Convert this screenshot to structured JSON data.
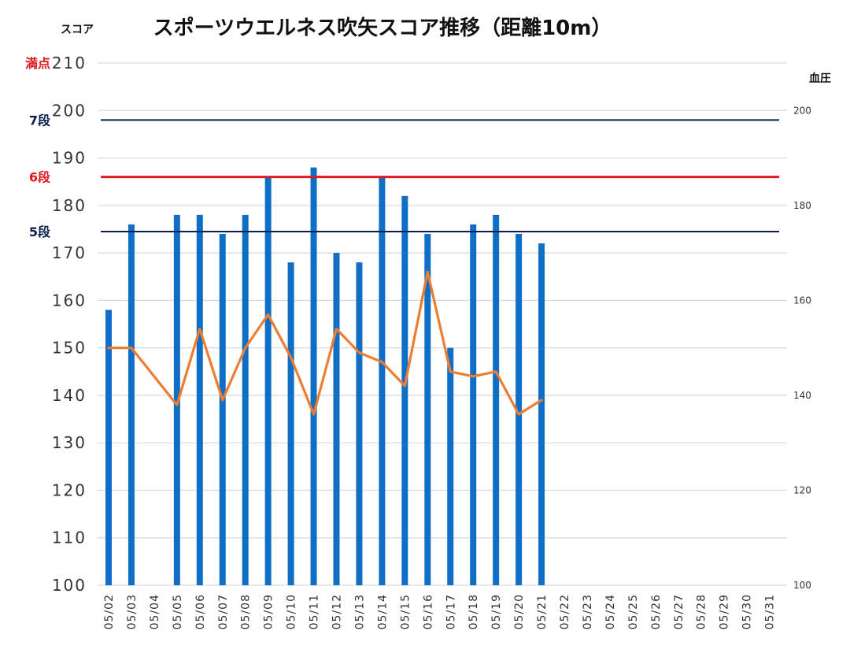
{
  "chart_data": {
    "type": "bar",
    "title": "スポーツウエルネス吹矢スコア推移（距離10m）",
    "ylabel": "スコア",
    "y2label": "血圧",
    "ylim": [
      100,
      210
    ],
    "y2lim": [
      100,
      210
    ],
    "yticks": [
      100,
      110,
      120,
      130,
      140,
      150,
      160,
      170,
      180,
      190,
      200,
      210
    ],
    "y2ticks": [
      100,
      120,
      140,
      160,
      180,
      200
    ],
    "grid": true,
    "categories": [
      "05/02",
      "05/03",
      "05/04",
      "05/05",
      "05/06",
      "05/07",
      "05/08",
      "05/09",
      "05/10",
      "05/11",
      "05/12",
      "05/13",
      "05/14",
      "05/15",
      "05/16",
      "05/17",
      "05/18",
      "05/19",
      "05/20",
      "05/21",
      "05/22",
      "05/23",
      "05/24",
      "05/25",
      "05/26",
      "05/27",
      "05/28",
      "05/29",
      "05/30",
      "05/31"
    ],
    "series": [
      {
        "type": "bar",
        "color": "#0f6fc6",
        "values": [
          158,
          176,
          null,
          178,
          178,
          174,
          178,
          186,
          168,
          188,
          170,
          168,
          186,
          182,
          174,
          150,
          176,
          178,
          174,
          172,
          null,
          null,
          null,
          null,
          null,
          null,
          null,
          null,
          null,
          null
        ]
      },
      {
        "type": "line",
        "color": "#ed7d31",
        "axis": "right",
        "values": [
          150,
          150,
          null,
          138,
          154,
          139,
          150,
          157,
          148,
          136,
          154,
          149,
          147,
          142,
          166,
          145,
          144,
          145,
          136,
          139,
          null,
          null,
          null,
          null,
          null,
          null,
          null,
          null,
          null,
          null
        ]
      }
    ],
    "reference_lines": [
      {
        "label": "満点",
        "value": 210,
        "color": "#e0191f",
        "show_line": false
      },
      {
        "label": "7段",
        "value": 198,
        "color": "#0b1f4f",
        "show_line": true
      },
      {
        "label": "6段",
        "value": 186,
        "color": "#e0191f",
        "show_line": true
      },
      {
        "label": "5段",
        "value": 174.5,
        "color": "#0b1f4f",
        "show_line": true
      }
    ]
  }
}
